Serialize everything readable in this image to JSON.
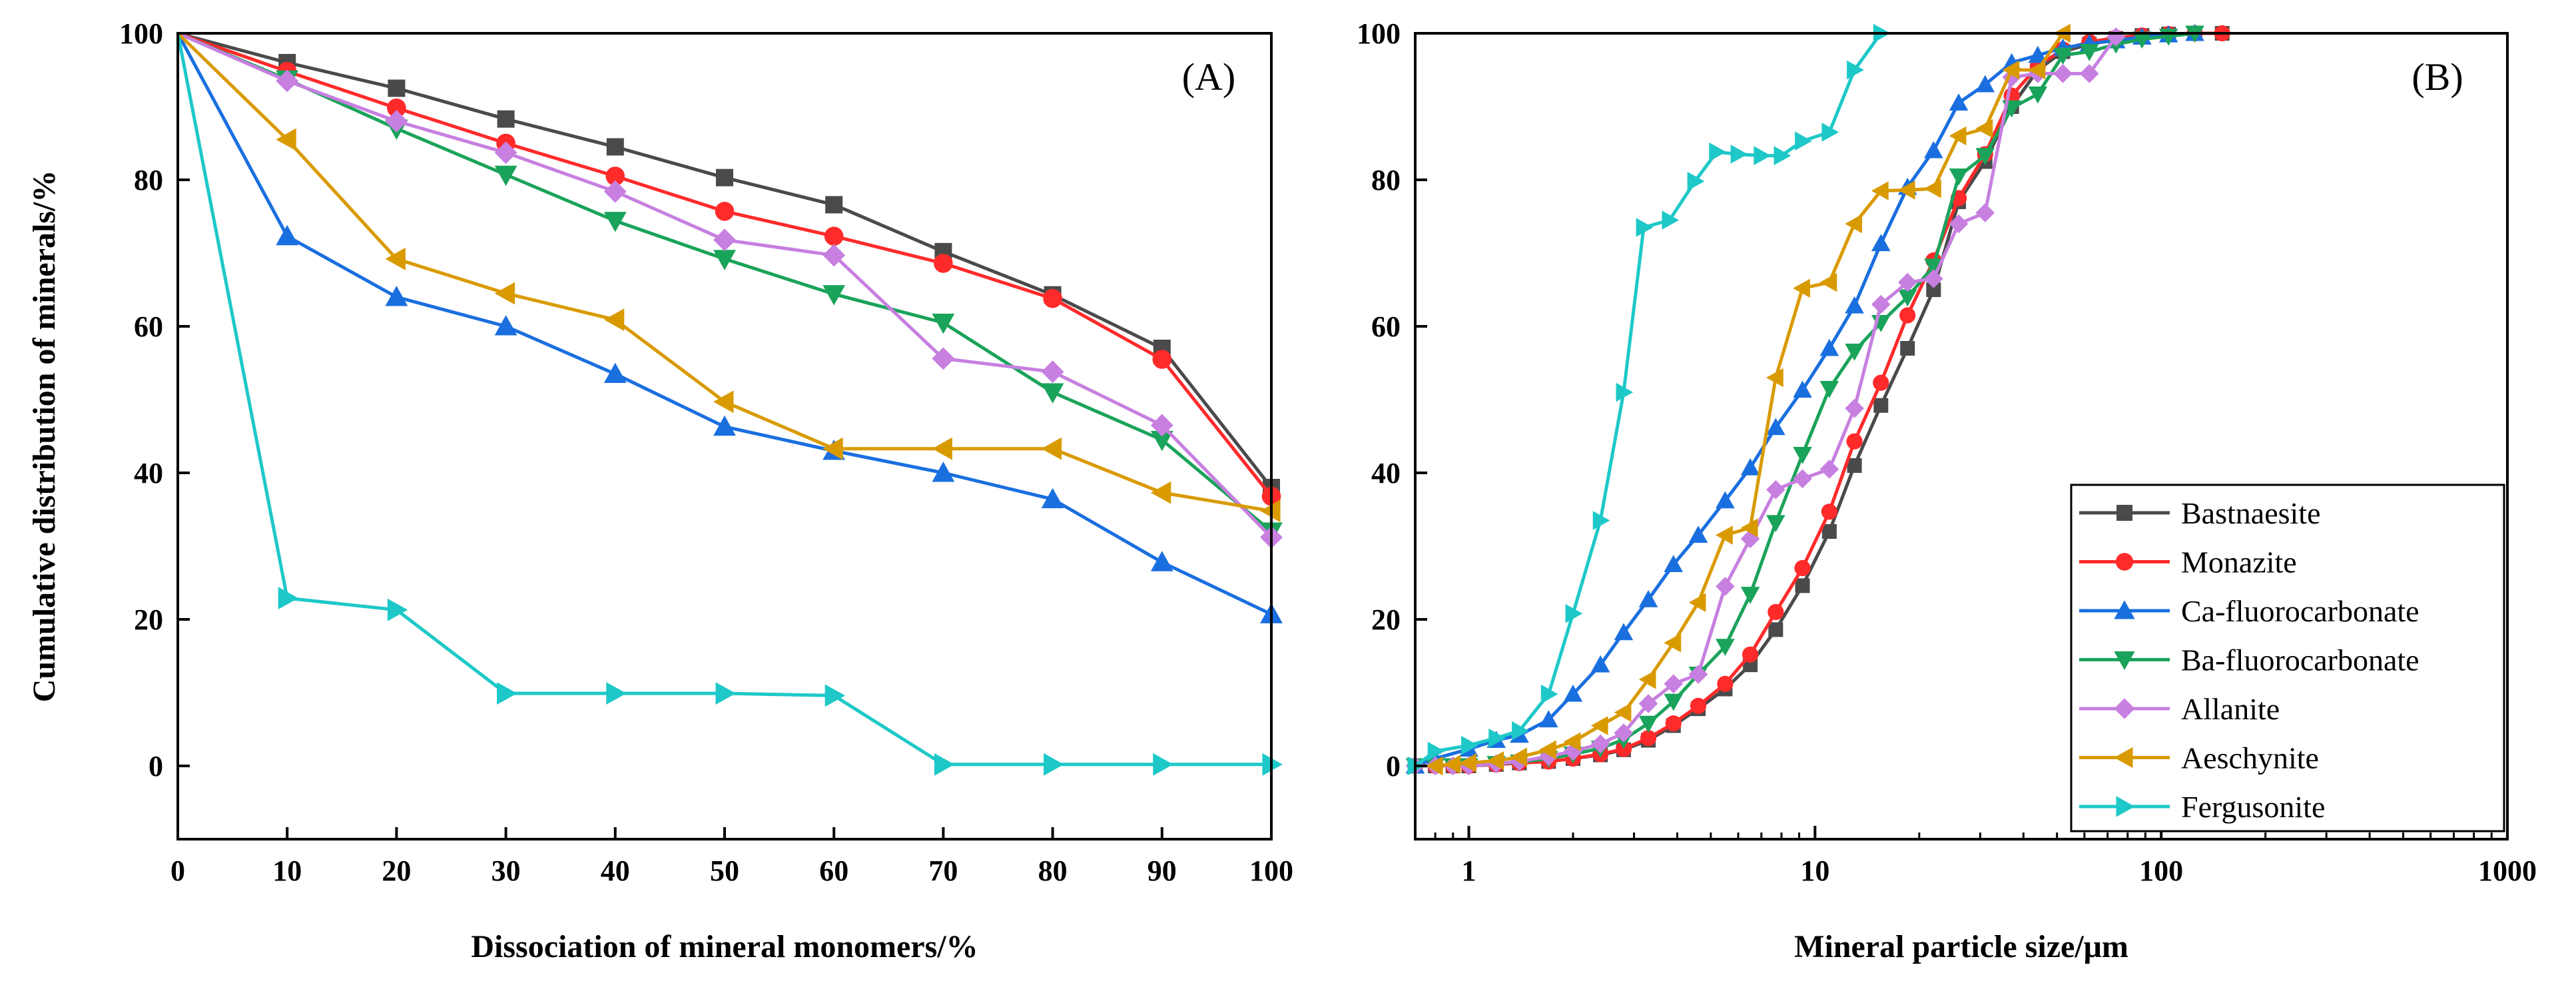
{
  "chart_data": [
    {
      "type": "line",
      "panel_label": "(A)",
      "xlabel": "Dissociation of mineral monomers/%",
      "ylabel": "Cumulative distribution of minerals/%",
      "xlim": [
        0,
        100
      ],
      "ylim": [
        -10,
        100
      ],
      "x_ticks": [
        "0",
        "10",
        "20",
        "30",
        "40",
        "50",
        "60",
        "70",
        "80",
        "90",
        "100"
      ],
      "y_ticks": [
        "0",
        "20",
        "40",
        "60",
        "80",
        "100"
      ],
      "x": [
        0,
        10,
        20,
        30,
        40,
        50,
        60,
        70,
        80,
        90,
        100
      ],
      "series": [
        {
          "name": "Bastnaesite",
          "color": "#4a4a4a",
          "marker": "square",
          "values": [
            100,
            96,
            92.5,
            88.3,
            84.5,
            80.3,
            76.6,
            70.2,
            64.3,
            57,
            38
          ]
        },
        {
          "name": "Monazite",
          "color": "#ff2a2a",
          "marker": "circle",
          "values": [
            100,
            94.8,
            89.8,
            85,
            80.5,
            75.7,
            72.3,
            68.6,
            63.8,
            55.5,
            36.8
          ]
        },
        {
          "name": "Ca-fluorocarbonate",
          "color": "#1a6fdf",
          "marker": "triangle-up",
          "values": [
            100,
            72.3,
            64,
            60,
            53.5,
            46.3,
            43,
            40,
            36.4,
            27.8,
            20.7
          ]
        },
        {
          "name": "Ba-fluorocarbonate",
          "color": "#1aa35a",
          "marker": "triangle-down",
          "values": [
            100,
            93.7,
            87,
            80.7,
            74.4,
            69.2,
            64.4,
            60.5,
            51,
            44.5,
            32
          ]
        },
        {
          "name": "Allanite",
          "color": "#c77fe0",
          "marker": "diamond",
          "values": [
            100,
            93.5,
            88,
            83.7,
            78.4,
            71.8,
            69.7,
            55.6,
            53.8,
            46.5,
            31.2
          ]
        },
        {
          "name": "Aeschynite",
          "color": "#d99a00",
          "marker": "triangle-left",
          "values": [
            100,
            85.5,
            69.2,
            64.5,
            60.9,
            49.7,
            43.3,
            43.3,
            43.3,
            37.3,
            34.8
          ]
        },
        {
          "name": "Fergusonite",
          "color": "#1ec8c8",
          "marker": "triangle-right",
          "values": [
            100,
            22.9,
            21.3,
            9.9,
            9.9,
            9.9,
            9.6,
            0.2,
            0.2,
            0.2,
            0.2
          ]
        }
      ]
    },
    {
      "type": "line",
      "panel_label": "(B)",
      "xlabel": "Mineral particle size/μm",
      "ylabel": "",
      "xscale": "log",
      "xlim": [
        0.7,
        1000
      ],
      "ylim": [
        -10,
        100
      ],
      "x_ticks": [
        "1",
        "10",
        "100",
        "1000"
      ],
      "y_ticks": [
        "0",
        "20",
        "40",
        "60",
        "80",
        "100"
      ],
      "legend_position": "lower-right",
      "series": [
        {
          "name": "Bastnaesite",
          "color": "#4a4a4a",
          "marker": "square",
          "x": [
            0.7,
            0.8,
            0.9,
            1,
            1.2,
            1.4,
            1.7,
            2,
            2.4,
            2.8,
            3.3,
            3.9,
            4.6,
            5.5,
            6.5,
            7.7,
            9.2,
            11,
            13,
            15.5,
            18.5,
            22,
            26,
            31,
            37,
            44,
            52,
            62,
            74,
            88,
            105,
            125,
            150
          ],
          "y": [
            0,
            0,
            0,
            0,
            0.2,
            0.4,
            0.6,
            1,
            1.5,
            2.2,
            3.5,
            5.5,
            7.8,
            10.5,
            13.8,
            18.6,
            24.6,
            32,
            41,
            49.2,
            57,
            65,
            77,
            82.5,
            90,
            95,
            97.5,
            98.5,
            99.3,
            99.7,
            99.9,
            100,
            100
          ]
        },
        {
          "name": "Monazite",
          "color": "#ff2a2a",
          "marker": "circle",
          "x": [
            0.7,
            0.8,
            0.9,
            1,
            1.2,
            1.4,
            1.7,
            2,
            2.4,
            2.8,
            3.3,
            3.9,
            4.6,
            5.5,
            6.5,
            7.7,
            9.2,
            11,
            13,
            15.5,
            18.5,
            22,
            26,
            31,
            37,
            44,
            52,
            62,
            74,
            88,
            105,
            125,
            150
          ],
          "y": [
            0,
            0,
            0,
            0,
            0.2,
            0.4,
            0.6,
            1,
            1.6,
            2.3,
            3.8,
            5.8,
            8.2,
            11.2,
            15.2,
            21,
            27,
            34.7,
            44.3,
            52.3,
            61.5,
            69,
            77.5,
            83.5,
            91.5,
            95.5,
            97.8,
            98.8,
            99.4,
            99.7,
            99.9,
            100,
            100
          ]
        },
        {
          "name": "Ca-fluorocarbonate",
          "color": "#1a6fdf",
          "marker": "triangle-up",
          "x": [
            0.7,
            0.8,
            1,
            1.2,
            1.4,
            1.7,
            2,
            2.4,
            2.8,
            3.3,
            3.9,
            4.6,
            5.5,
            6.5,
            7.7,
            9.2,
            11,
            13,
            15.5,
            18.5,
            22,
            26,
            31,
            37,
            44,
            52,
            62,
            74,
            88,
            105,
            125
          ],
          "y": [
            0,
            1,
            2.3,
            3.5,
            4.2,
            6.3,
            9.8,
            13.8,
            18.2,
            22.7,
            27.5,
            31.5,
            36.2,
            40.7,
            46.2,
            51.3,
            57,
            62.8,
            71.3,
            79,
            84,
            90.5,
            93,
            96,
            97,
            98,
            98.6,
            99,
            99.5,
            99.8,
            100
          ]
        },
        {
          "name": "Ba-fluorocarbonate",
          "color": "#1aa35a",
          "marker": "triangle-down",
          "x": [
            0.7,
            0.8,
            0.9,
            1,
            1.2,
            1.4,
            1.7,
            2,
            2.4,
            2.8,
            3.3,
            3.9,
            4.6,
            5.5,
            6.5,
            7.7,
            9.2,
            11,
            13,
            15.5,
            18.5,
            22,
            26,
            31,
            37,
            44,
            52,
            62,
            74,
            88,
            105,
            125
          ],
          "y": [
            0,
            0,
            0,
            0,
            0.3,
            0.5,
            1,
            1.6,
            2.4,
            3.6,
            5.8,
            8.8,
            12.5,
            16.3,
            23.4,
            33.2,
            42.5,
            51.5,
            56.6,
            60.5,
            64,
            68.2,
            80.5,
            83.3,
            89.8,
            91.7,
            97,
            97.5,
            98.5,
            99.2,
            99.6,
            100
          ]
        },
        {
          "name": "Allanite",
          "color": "#c77fe0",
          "marker": "diamond",
          "x": [
            0.7,
            0.8,
            0.9,
            1,
            1.2,
            1.4,
            1.7,
            2,
            2.4,
            2.8,
            3.3,
            3.9,
            4.6,
            5.5,
            6.5,
            7.7,
            9.2,
            11,
            13,
            15.5,
            18.5,
            22,
            26,
            31,
            37,
            44,
            52,
            62,
            74
          ],
          "y": [
            0,
            0,
            0,
            0,
            0.3,
            0.6,
            1.3,
            2,
            3,
            4.5,
            8.5,
            11.2,
            12.5,
            24.5,
            31,
            37.7,
            39.2,
            40.5,
            48.8,
            63,
            66,
            66.5,
            74,
            75.5,
            94,
            94.5,
            94.5,
            94.5,
            99.5
          ]
        },
        {
          "name": "Aeschynite",
          "color": "#d99a00",
          "marker": "triangle-left",
          "x": [
            0.8,
            0.9,
            1,
            1.2,
            1.4,
            1.7,
            2,
            2.4,
            2.8,
            3.3,
            3.9,
            4.6,
            5.5,
            6.5,
            7.7,
            9.2,
            11,
            13,
            15.5,
            18.5,
            22,
            26,
            31,
            37,
            44,
            52
          ],
          "y": [
            0,
            0.2,
            0.4,
            0.7,
            1.2,
            2.2,
            3.3,
            5.5,
            7.3,
            11.8,
            16.8,
            22.3,
            31.5,
            32.5,
            53,
            65.2,
            66,
            74,
            78.5,
            78.6,
            78.8,
            86,
            87,
            95,
            95,
            100
          ]
        },
        {
          "name": "Fergusonite",
          "color": "#1ec8c8",
          "marker": "triangle-right",
          "x": [
            0.7,
            0.8,
            1,
            1.2,
            1.4,
            1.7,
            2,
            2.4,
            2.8,
            3.2,
            3.8,
            4.5,
            5.2,
            6,
            7,
            8,
            9.2,
            11,
            13,
            15.5
          ],
          "y": [
            0,
            2,
            2.8,
            3.8,
            4.8,
            9.8,
            20.8,
            33.5,
            51,
            73.5,
            74.5,
            79.8,
            83.8,
            83.5,
            83.3,
            83.3,
            85.3,
            86.5,
            95,
            100
          ]
        }
      ]
    }
  ]
}
